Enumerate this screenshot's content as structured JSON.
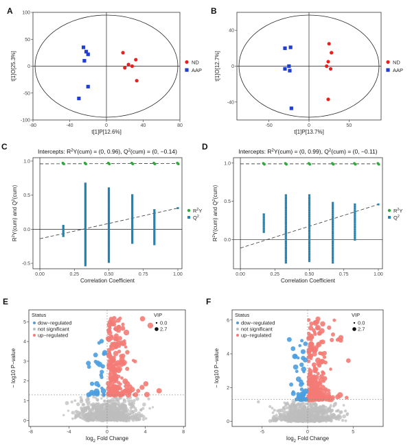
{
  "colors": {
    "nd": "#e8201e",
    "aap": "#1f3fd0",
    "r2y": "#2eaa3a",
    "q2": "#1e83b5",
    "up": "#f47b76",
    "down": "#4b9ee0",
    "ns": "#bdbdbd"
  },
  "chart_data": [
    {
      "id": "A",
      "type": "scatter",
      "letter": "A",
      "xlabel": "t[1]P[12.6%]",
      "ylabel": "t[1]O[25.3%]",
      "xlim": [
        -80,
        80
      ],
      "ylim": [
        -100,
        100
      ],
      "xticks": [
        "-80",
        "-40",
        "0",
        "40",
        "80"
      ],
      "yticks": [
        "-100",
        "-50",
        "0",
        "50",
        "100"
      ],
      "series": [
        {
          "name": "ND",
          "marker": "circle",
          "points": [
            [
              18,
              25
            ],
            [
              32,
              12
            ],
            [
              24,
              3
            ],
            [
              28,
              0
            ],
            [
              33,
              -27
            ],
            [
              20,
              -3
            ]
          ]
        },
        {
          "name": "AAP",
          "marker": "square",
          "points": [
            [
              -25,
              35
            ],
            [
              -22,
              27
            ],
            [
              -20,
              22
            ],
            [
              -24,
              10
            ],
            [
              -20,
              -38
            ],
            [
              -30,
              -60
            ]
          ]
        }
      ]
    },
    {
      "id": "B",
      "type": "scatter",
      "letter": "B",
      "xlabel": "t[1]P[13.7%]",
      "ylabel": "t[1]O[12.7%]",
      "xlim": [
        -90,
        90
      ],
      "ylim": [
        -60,
        60
      ],
      "xticks": [
        "-50",
        "0",
        "50"
      ],
      "yticks": [
        "-40",
        "0",
        "40"
      ],
      "series": [
        {
          "name": "ND",
          "marker": "circle",
          "points": [
            [
              25,
              25
            ],
            [
              28,
              15
            ],
            [
              24,
              5
            ],
            [
              22,
              0
            ],
            [
              27,
              -3
            ],
            [
              24,
              -37
            ]
          ]
        },
        {
          "name": "AAP",
          "marker": "square",
          "points": [
            [
              -30,
              20
            ],
            [
              -23,
              21
            ],
            [
              -25,
              0
            ],
            [
              -24,
              -5
            ],
            [
              -30,
              -3
            ],
            [
              -22,
              -47
            ]
          ]
        }
      ]
    },
    {
      "id": "C",
      "type": "scatter",
      "letter": "C",
      "title": "Intercepts: R²Y(cum) = (0, 0.96), Q²(cum) = (0, −0.14)",
      "xlabel": "Correlation Coefficient",
      "ylabel": "R²Y(cum) and Q²(cum)",
      "xlim": [
        -0.05,
        1.03
      ],
      "ylim": [
        -0.58,
        1.05
      ],
      "xticks": [
        "0.00",
        "0.25",
        "0.50",
        "0.75",
        "1.00"
      ],
      "yticks": [
        "-0.5",
        "0.0",
        "0.5",
        "1.0"
      ],
      "r2y_intercept": 0.96,
      "q2_intercept": -0.14,
      "q2_end": 0.31,
      "r2y": {
        "x": [
          0.17,
          0.33,
          0.5,
          0.67,
          0.83,
          1.0
        ],
        "y": [
          0.965,
          0.965,
          0.965,
          0.965,
          0.965,
          0.965
        ]
      },
      "q2_columns": [
        {
          "x": 0.17,
          "min": -0.1,
          "max": 0.05
        },
        {
          "x": 0.33,
          "min": -0.53,
          "max": 0.67
        },
        {
          "x": 0.5,
          "min": -0.48,
          "max": 0.6
        },
        {
          "x": 0.67,
          "min": -0.2,
          "max": 0.5
        },
        {
          "x": 0.83,
          "min": -0.22,
          "max": 0.28
        }
      ],
      "q2_final": {
        "x": 1.0,
        "y": 0.31
      },
      "legend": [
        "R²Y",
        "Q²"
      ]
    },
    {
      "id": "D",
      "type": "scatter",
      "letter": "D",
      "title": "Intercepts: R²Y(cum) = (0, 0.99), Q²(cum) = (0, −0.11)",
      "xlabel": "Correlation Coefficient",
      "ylabel": "R²Y(cum) and Q²(cum)",
      "xlim": [
        -0.05,
        1.03
      ],
      "ylim": [
        -0.38,
        1.07
      ],
      "xticks": [
        "0.00",
        "0.25",
        "0.50",
        "0.75",
        "1.00"
      ],
      "yticks": [
        "0.0",
        "0.5",
        "1.0"
      ],
      "r2y_intercept": 0.99,
      "q2_intercept": -0.11,
      "q2_end": 0.46,
      "r2y": {
        "x": [
          0.17,
          0.33,
          0.5,
          0.67,
          0.83,
          1.0
        ],
        "y": [
          0.99,
          0.99,
          0.99,
          0.99,
          0.99,
          0.99
        ]
      },
      "q2_columns": [
        {
          "x": 0.17,
          "min": 0.1,
          "max": 0.33
        },
        {
          "x": 0.33,
          "min": -0.3,
          "max": 0.58
        },
        {
          "x": 0.5,
          "min": -0.28,
          "max": 0.58
        },
        {
          "x": 0.67,
          "min": -0.3,
          "max": 0.48
        },
        {
          "x": 0.83,
          "min": 0.0,
          "max": 0.46
        }
      ],
      "q2_final": {
        "x": 1.0,
        "y": 0.46
      },
      "legend": [
        "R²Y",
        "Q²"
      ]
    },
    {
      "id": "E",
      "type": "scatter",
      "letter": "E",
      "xlabel": "log2 Fold Change",
      "ylabel": "− log10 P−value",
      "xlim": [
        -8.2,
        8.2
      ],
      "ylim": [
        -0.3,
        5.6
      ],
      "xticks": [
        "-8",
        "-4",
        "0",
        "4",
        "8"
      ],
      "yticks": [
        "0",
        "1",
        "2",
        "3",
        "4",
        "5"
      ],
      "threshold": 1.3,
      "status_title": "Status",
      "vip_title": "VIP",
      "status_labels": [
        "dow−regulated",
        "not significant",
        "up−regulated"
      ],
      "vip_values": [
        "0.0",
        "2.7"
      ],
      "up_count": 210,
      "down_count": 30,
      "ns_count": 650,
      "max_up": 5.2,
      "max_down": 4.2
    },
    {
      "id": "F",
      "type": "scatter",
      "letter": "F",
      "xlabel": "log2 Fold Change",
      "ylabel": "− log10 P−value",
      "xlim": [
        -8.3,
        8.3
      ],
      "ylim": [
        -0.3,
        6.6
      ],
      "xticks": [
        "-5",
        "0",
        "5"
      ],
      "yticks": [
        "0",
        "2",
        "4",
        "6"
      ],
      "threshold": 1.3,
      "status_title": "Status",
      "vip_title": "VIP",
      "status_labels": [
        "dow−regulated",
        "not significant",
        "up−regulated"
      ],
      "vip_values": [
        "0.0",
        "2.7"
      ],
      "up_count": 230,
      "down_count": 45,
      "ns_count": 650,
      "max_up": 6.1,
      "max_down": 5.0
    }
  ]
}
